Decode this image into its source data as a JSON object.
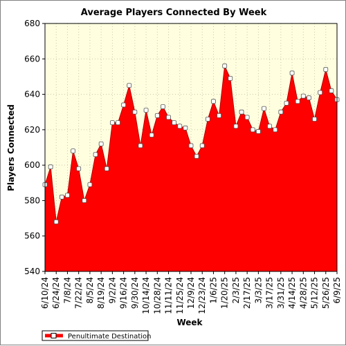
{
  "chart_data": {
    "type": "area",
    "title": "Average Players Connected By Week",
    "xlabel": "Week",
    "ylabel": "Players Connected",
    "ylim": [
      540,
      680
    ],
    "yticks": [
      540,
      560,
      580,
      600,
      620,
      640,
      660,
      680
    ],
    "grid": true,
    "legend_position": "bottom-left",
    "colors": {
      "fill": "#ff0000",
      "line": "#b30000",
      "plot_background": "#ffffe0",
      "grid": "#c8c8a8",
      "marker_fill": "#ffffff"
    },
    "x_tick_labels": [
      "6/10/24",
      "6/24/24",
      "7/8/24",
      "7/22/24",
      "8/5/24",
      "8/19/24",
      "9/2/24",
      "9/16/24",
      "9/30/24",
      "10/14/24",
      "10/28/24",
      "11/11/24",
      "11/25/24",
      "12/9/24",
      "12/23/24",
      "1/6/25",
      "1/20/25",
      "2/3/25",
      "2/17/25",
      "3/3/25",
      "3/17/25",
      "3/31/25",
      "4/14/25",
      "4/28/25",
      "5/12/25",
      "5/26/25",
      "6/9/25"
    ],
    "series": [
      {
        "name": "Penultimate Destination",
        "x": [
          "6/10/24",
          "6/17/24",
          "6/24/24",
          "7/1/24",
          "7/8/24",
          "7/15/24",
          "7/22/24",
          "7/29/24",
          "8/5/24",
          "8/12/24",
          "8/19/24",
          "8/26/24",
          "9/2/24",
          "9/9/24",
          "9/16/24",
          "9/23/24",
          "9/30/24",
          "10/7/24",
          "10/14/24",
          "10/21/24",
          "10/28/24",
          "11/4/24",
          "11/11/24",
          "11/18/24",
          "11/25/24",
          "12/2/24",
          "12/9/24",
          "12/16/24",
          "12/23/24",
          "12/30/24",
          "1/6/25",
          "1/13/25",
          "1/20/25",
          "1/27/25",
          "2/3/25",
          "2/10/25",
          "2/17/25",
          "2/24/25",
          "3/3/25",
          "3/10/25",
          "3/17/25",
          "3/24/25",
          "3/31/25",
          "4/7/25",
          "4/14/25",
          "4/21/25",
          "4/28/25",
          "5/5/25",
          "5/12/25",
          "5/19/25",
          "5/26/25",
          "6/2/25",
          "6/9/25"
        ],
        "values": [
          589,
          599,
          568,
          582,
          583,
          608,
          598,
          580,
          589,
          606,
          612,
          598,
          624,
          624,
          634,
          645,
          630,
          611,
          631,
          617,
          628,
          633,
          627,
          624,
          622,
          621,
          611,
          605,
          611,
          626,
          636,
          628,
          656,
          649,
          622,
          630,
          627,
          620,
          619,
          632,
          622,
          620,
          630,
          635,
          652,
          636,
          639,
          638,
          626,
          641,
          654,
          642,
          637
        ]
      }
    ]
  }
}
